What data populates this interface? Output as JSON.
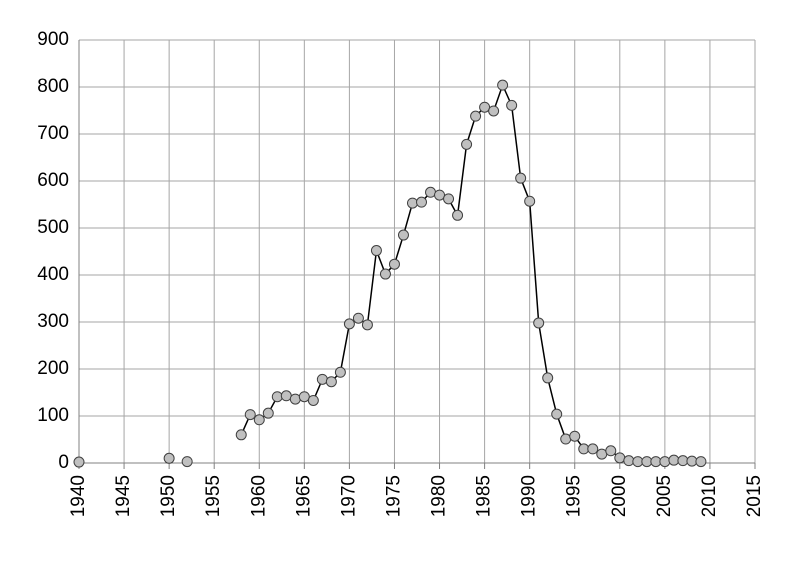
{
  "chart_data": {
    "type": "line",
    "x": [
      1940,
      1941,
      1950,
      1951,
      1952,
      1953,
      1958,
      1959,
      1960,
      1961,
      1962,
      1963,
      1964,
      1965,
      1966,
      1967,
      1968,
      1969,
      1970,
      1971,
      1972,
      1973,
      1974,
      1975,
      1976,
      1977,
      1978,
      1979,
      1980,
      1981,
      1982,
      1983,
      1984,
      1985,
      1986,
      1987,
      1988,
      1989,
      1990,
      1991,
      1992,
      1993,
      1994,
      1995,
      1996,
      1997,
      1998,
      1999,
      2000,
      2001,
      2002,
      2003,
      2004,
      2005,
      2006,
      2007,
      2008,
      2009
    ],
    "values": [
      2,
      null,
      10,
      null,
      3,
      null,
      60,
      103,
      92,
      106,
      141,
      143,
      136,
      141,
      133,
      178,
      173,
      193,
      296,
      308,
      294,
      452,
      402,
      423,
      485,
      553,
      555,
      576,
      570,
      562,
      527,
      678,
      738,
      757,
      749,
      804,
      761,
      606,
      557,
      298,
      181,
      104,
      51,
      57,
      30,
      30,
      19,
      26,
      11,
      5,
      3,
      3,
      3,
      3,
      6,
      5,
      4,
      3
    ],
    "color": "#000000",
    "marker_color": "#c0c0c0",
    "xlim": [
      1940,
      2015
    ],
    "xticks": [
      1940,
      1945,
      1950,
      1955,
      1960,
      1965,
      1970,
      1975,
      1980,
      1985,
      1990,
      1995,
      2000,
      2005,
      2010,
      2015
    ],
    "ylim": [
      0,
      900
    ],
    "yticks": [
      0,
      100,
      200,
      300,
      400,
      500,
      600,
      700,
      800,
      900
    ],
    "grid": true
  }
}
